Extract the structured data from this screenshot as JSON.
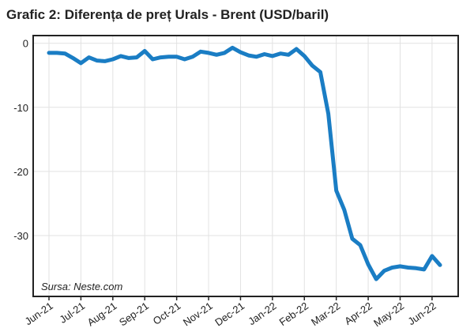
{
  "chart_data": {
    "type": "line",
    "title": "Grafic 2: Diferența de preț Urals - Brent (USD/baril)",
    "annotation": "Sursa: Neste.com",
    "categories": [
      "Jun-21",
      null,
      null,
      null,
      "Jul-21",
      null,
      null,
      null,
      "Aug-21",
      null,
      null,
      null,
      "Sep-21",
      null,
      null,
      null,
      "Oct-21",
      null,
      null,
      null,
      "Nov-21",
      null,
      null,
      null,
      "Dec-21",
      null,
      null,
      null,
      "Jan-22",
      null,
      null,
      null,
      "Feb-22",
      null,
      null,
      null,
      "Mar-22",
      null,
      null,
      null,
      "Apr-22",
      null,
      null,
      null,
      "May-22",
      null,
      null,
      null,
      "Jun-22",
      null
    ],
    "series": [
      {
        "name": "Urals - Brent",
        "color": "#1a7dc4",
        "values": [
          -1.5,
          -1.5,
          -1.6,
          -2.3,
          -3.1,
          -2.2,
          -2.7,
          -2.8,
          -2.5,
          -2.0,
          -2.3,
          -2.2,
          -1.2,
          -2.5,
          -2.2,
          -2.1,
          -2.1,
          -2.5,
          -2.1,
          -1.3,
          -1.5,
          -1.8,
          -1.5,
          -0.7,
          -1.4,
          -1.9,
          -2.1,
          -1.7,
          -2.0,
          -1.6,
          -1.8,
          -0.9,
          -2.0,
          -3.5,
          -4.5,
          -11,
          -23,
          -26,
          -30.5,
          -31.5,
          -34.5,
          -36.8,
          -35.5,
          -35,
          -34.8,
          -35,
          -35.1,
          -35.3,
          -33.2,
          -34.6
        ]
      }
    ],
    "ylim": [
      -39.5,
      1.2
    ],
    "yticks": [
      0,
      -10,
      -20,
      -30
    ],
    "grid": true
  }
}
